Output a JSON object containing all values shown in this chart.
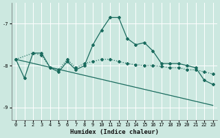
{
  "xlabel": "Humidex (Indice chaleur)",
  "xlim": [
    -0.5,
    23.5
  ],
  "ylim": [
    -9.3,
    -6.5
  ],
  "yticks": [
    -9,
    -8,
    -7
  ],
  "xticks": [
    0,
    1,
    2,
    3,
    4,
    5,
    6,
    7,
    8,
    9,
    10,
    11,
    12,
    13,
    14,
    15,
    16,
    17,
    18,
    19,
    20,
    21,
    22,
    23
  ],
  "bg_color": "#cce8e0",
  "grid_color": "#ffffff",
  "line_color": "#1a6b5e",
  "line_main": {
    "x": [
      0,
      1,
      2,
      3,
      4,
      5,
      6,
      7,
      8,
      9,
      10,
      11,
      12,
      13,
      14,
      15,
      16,
      17,
      18,
      19,
      20,
      21,
      22,
      23
    ],
    "y": [
      -7.85,
      -8.3,
      -7.7,
      -7.7,
      -8.05,
      -8.15,
      -7.9,
      -8.1,
      -8.0,
      -7.5,
      -7.15,
      -6.85,
      -6.85,
      -7.35,
      -7.5,
      -7.45,
      -7.65,
      -7.95,
      -7.95,
      -7.95,
      -8.0,
      -8.05,
      -8.35,
      -8.45
    ]
  },
  "line_dot": {
    "x": [
      0,
      2,
      3,
      4,
      5,
      6,
      7,
      8,
      9,
      10,
      11,
      12,
      13,
      14,
      15,
      16,
      17,
      18,
      19,
      20,
      21,
      22,
      23
    ],
    "y": [
      -7.85,
      -7.7,
      -7.75,
      -8.05,
      -8.1,
      -7.85,
      -8.05,
      -7.95,
      -7.9,
      -7.85,
      -7.85,
      -7.9,
      -7.95,
      -7.98,
      -8.0,
      -8.0,
      -8.02,
      -8.05,
      -8.05,
      -8.1,
      -8.1,
      -8.15,
      -8.2
    ]
  },
  "line_straight": {
    "x": [
      0,
      23
    ],
    "y": [
      -7.85,
      -8.95
    ]
  }
}
